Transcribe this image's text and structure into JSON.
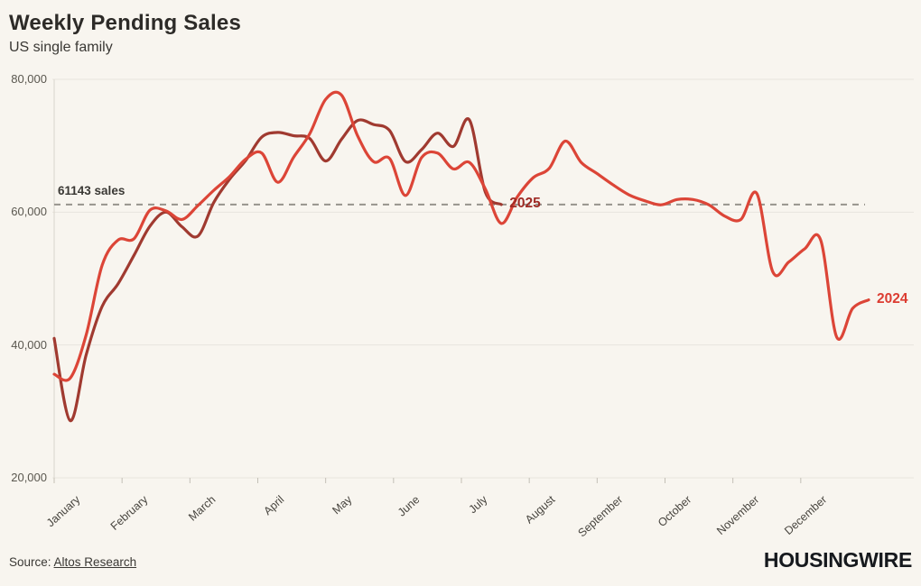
{
  "header": {
    "title": "Weekly Pending Sales",
    "subtitle": "US single family"
  },
  "footer": {
    "source_prefix": "Source:",
    "source_link": "Altos Research",
    "logo": "HOUSINGWIRE"
  },
  "chart_data": {
    "type": "line",
    "title": "Weekly Pending Sales",
    "subtitle": "US single family",
    "grid": "horizontal",
    "legend": "end-of-line-labels",
    "x_axis": {
      "unit": "week of year",
      "tick_labels": [
        "January",
        "February",
        "March",
        "April",
        "May",
        "June",
        "July",
        "August",
        "September",
        "October",
        "November",
        "December"
      ]
    },
    "y_axis": {
      "tick_labels": [
        "80,000",
        "60,000",
        "40,000",
        "20,000"
      ],
      "tick_values": [
        80000,
        60000,
        40000,
        20000
      ],
      "range": [
        20000,
        80000
      ]
    },
    "reference_line": {
      "value": 61143,
      "label": "61143 sales",
      "style": "dashed",
      "color": "#97948d"
    },
    "series": [
      {
        "name": "2024",
        "color": "#dc4537",
        "label_color": "#dc3c31",
        "weeks": 52,
        "values": [
          35600,
          35000,
          41500,
          52000,
          55800,
          56000,
          60300,
          60200,
          58900,
          61000,
          63300,
          65400,
          68000,
          68900,
          64500,
          68300,
          71800,
          77000,
          77600,
          71500,
          67600,
          68100,
          62500,
          68200,
          68900,
          66500,
          67500,
          63500,
          58300,
          62300,
          65200,
          66600,
          70700,
          67500,
          65800,
          64100,
          62600,
          61700,
          61100,
          61900,
          61900,
          61100,
          59400,
          58900,
          62800,
          51000,
          52500,
          54500,
          55800,
          41200,
          45500,
          46800
        ]
      },
      {
        "name": "2025",
        "color": "#a03a30",
        "label_color": "#9e2a24",
        "weeks": 29,
        "values": [
          41000,
          28600,
          38500,
          45800,
          49200,
          53500,
          57900,
          60000,
          57800,
          56400,
          61500,
          65000,
          67800,
          71300,
          72000,
          71500,
          71100,
          67700,
          71000,
          73800,
          73200,
          72300,
          67600,
          69400,
          71900,
          69900,
          73900,
          63000,
          61143
        ]
      }
    ]
  }
}
